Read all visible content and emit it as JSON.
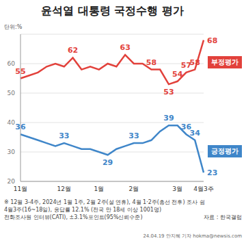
{
  "chart_data": {
    "type": "line",
    "title": "윤석열 대통령 국정수행 평가",
    "unit": "단위:%",
    "categories": [
      "11월",
      null,
      null,
      null,
      null,
      "12월",
      null,
      null,
      null,
      "1월",
      null,
      null,
      null,
      "2월",
      null,
      null,
      null,
      null,
      "3월",
      null,
      null,
      "4월3주"
    ],
    "ylim": [
      20,
      70
    ],
    "yticks": [
      20,
      30,
      40,
      50,
      60
    ],
    "grid": true,
    "data_labels": true,
    "series": [
      {
        "name": "부정평가",
        "color": "#e2413b",
        "values": [
          55,
          56,
          57,
          59,
          60,
          59,
          62,
          58,
          59,
          58,
          60,
          59,
          63,
          60,
          60,
          58,
          58,
          53,
          54,
          57,
          58,
          68
        ],
        "value_labels": [
          "55",
          null,
          null,
          null,
          null,
          null,
          "62",
          null,
          null,
          null,
          null,
          null,
          "63",
          null,
          null,
          "58",
          null,
          "53",
          "54",
          "57",
          "58",
          "68"
        ]
      },
      {
        "name": "긍정평가",
        "color": "#3f86c9",
        "values": [
          36,
          35,
          34,
          33,
          32,
          33,
          32,
          31,
          31,
          30,
          29,
          31,
          32,
          33,
          33,
          34,
          37,
          39,
          39,
          36,
          34,
          23
        ],
        "value_labels": [
          "36",
          null,
          null,
          null,
          null,
          "33",
          null,
          null,
          null,
          null,
          "29",
          null,
          null,
          "33",
          null,
          null,
          null,
          "39",
          null,
          "36",
          "34",
          "23"
        ]
      }
    ],
    "notes": [
      "※ 12월 3-4주, 2024년 1월 1주, 2월 2주(설 연휴), 4월 1·2주(총선 전후) 조사 쉼",
      "4월3주(16~18일), 응답률 12.1% (전국 만 18세 이상 1001명)",
      "전화조사원 인터뷰(CATI), ±3.1%포인트(95%신뢰수준)"
    ],
    "source": "자료 : 한국갤럽",
    "credit": "24.04.19 안지혜 기자 hokma@newsis.com"
  }
}
